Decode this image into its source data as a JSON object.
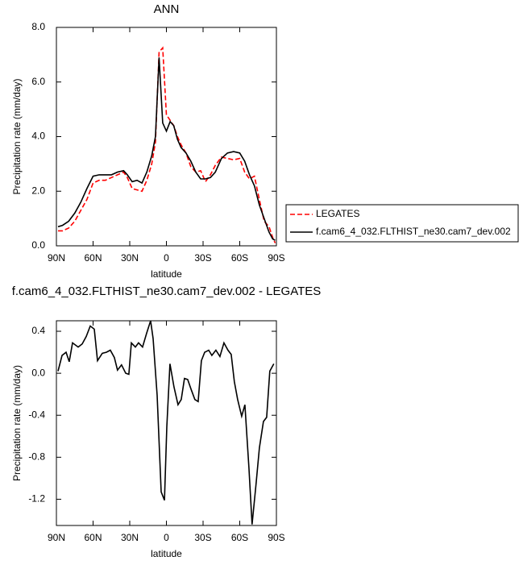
{
  "chart_data": [
    {
      "type": "line",
      "title": "ANN",
      "x_label": "latitude",
      "y_label": "Precipitation rate (mm/day)",
      "x": [
        88.7,
        85,
        80,
        75,
        70,
        65,
        60,
        55,
        50,
        45,
        40,
        35,
        32,
        28,
        24,
        20,
        16,
        12,
        9,
        6,
        3,
        0,
        -3,
        -6,
        -9,
        -12,
        -16,
        -20,
        -24,
        -28,
        -32,
        -36,
        -40,
        -45,
        -50,
        -55,
        -60,
        -64,
        -68,
        -72,
        -76,
        -80,
        -84,
        -87,
        -89
      ],
      "series": [
        {
          "name": "LEGATES",
          "color": "#ff0000",
          "style": "dashed",
          "values": [
            0.55,
            0.55,
            0.65,
            0.9,
            1.3,
            1.7,
            2.3,
            2.4,
            2.4,
            2.5,
            2.6,
            2.7,
            2.5,
            2.1,
            2.05,
            2.0,
            2.4,
            3.0,
            3.8,
            7.1,
            7.25,
            4.8,
            4.6,
            4.4,
            4.0,
            3.7,
            3.4,
            2.9,
            2.7,
            2.75,
            2.35,
            2.6,
            2.95,
            3.25,
            3.2,
            3.15,
            3.2,
            2.7,
            2.45,
            2.55,
            1.7,
            0.9,
            0.7,
            0.3,
            0.1
          ]
        },
        {
          "name": "f.cam6_4_032.FLTHIST_ne30.cam7_dev.002",
          "color": "#000000",
          "style": "solid",
          "values": [
            0.7,
            0.75,
            0.9,
            1.2,
            1.6,
            2.1,
            2.55,
            2.6,
            2.6,
            2.6,
            2.7,
            2.75,
            2.6,
            2.35,
            2.4,
            2.3,
            2.7,
            3.3,
            4.0,
            6.9,
            4.5,
            4.2,
            4.55,
            4.4,
            3.9,
            3.6,
            3.4,
            3.1,
            2.7,
            2.45,
            2.45,
            2.5,
            2.7,
            3.2,
            3.4,
            3.45,
            3.4,
            3.1,
            2.6,
            2.2,
            1.5,
            1.0,
            0.5,
            0.25,
            0.2
          ]
        }
      ],
      "xlim": [
        90,
        -90
      ],
      "xticks": [
        {
          "value": 90,
          "label": "90N"
        },
        {
          "value": 60,
          "label": "60N"
        },
        {
          "value": 30,
          "label": "30N"
        },
        0,
        {
          "value": -30,
          "label": "30S"
        },
        {
          "value": -60,
          "label": "60S"
        },
        {
          "value": -90,
          "label": "90S"
        }
      ],
      "ylim": [
        0,
        8
      ],
      "yticks": [
        {
          "value": 0,
          "label": "0.0"
        },
        {
          "value": 2,
          "label": "2.0"
        },
        {
          "value": 4,
          "label": "4.0"
        },
        {
          "value": 6,
          "label": "6.0"
        },
        {
          "value": 8,
          "label": "8.0"
        }
      ],
      "legend": "outside right"
    },
    {
      "type": "line",
      "title": "f.cam6_4_032.FLTHIST_ne30.cam7_dev.002 - LEGATES",
      "x_label": "latitude",
      "y_label": "Precipitation rate (mm/day)",
      "x": [
        88.7,
        85.4,
        82.1,
        79.5,
        76.8,
        72.2,
        68.9,
        65.6,
        62.3,
        59.0,
        56.4,
        52.5,
        49.2,
        45.9,
        42.6,
        40.0,
        36.7,
        33.3,
        30.7,
        28.7,
        25.4,
        22.8,
        19.5,
        16.2,
        12.9,
        10.9,
        7.6,
        4.3,
        1.6,
        -0.3,
        -2.9,
        -6.2,
        -9.5,
        -12.1,
        -14.8,
        -17.4,
        -20.1,
        -23.3,
        -26.0,
        -28.6,
        -31.3,
        -34.6,
        -37.2,
        -40.5,
        -43.8,
        -47.1,
        -50.4,
        -53.0,
        -55.6,
        -58.3,
        -61.6,
        -64.2,
        -67.5,
        -70.1,
        -73.4,
        -76.1,
        -79.4,
        -82.0,
        -84.6,
        -87.9
      ],
      "series": [
        {
          "color": "#000000",
          "style": "solid",
          "values": [
            0.02,
            0.17,
            0.2,
            0.11,
            0.29,
            0.25,
            0.28,
            0.35,
            0.45,
            0.42,
            0.12,
            0.19,
            0.2,
            0.22,
            0.15,
            0.03,
            0.08,
            0,
            -0.01,
            0.29,
            0.25,
            0.29,
            0.25,
            0.38,
            0.5,
            0.33,
            -0.21,
            -1.13,
            -1.21,
            -0.51,
            0.09,
            -0.13,
            -0.3,
            -0.25,
            -0.05,
            -0.06,
            -0.15,
            -0.25,
            -0.27,
            0.12,
            0.2,
            0.22,
            0.17,
            0.22,
            0.16,
            0.29,
            0.22,
            0.18,
            -0.08,
            -0.25,
            -0.41,
            -0.3,
            -0.9,
            -1.44,
            -1.05,
            -0.71,
            -0.46,
            -0.42,
            0.02,
            0.09
          ]
        }
      ],
      "xlim": [
        90,
        -90
      ],
      "xticks": [
        {
          "value": 90,
          "label": "90N"
        },
        {
          "value": 60,
          "label": "60N"
        },
        {
          "value": 30,
          "label": "30N"
        },
        0,
        {
          "value": -30,
          "label": "30S"
        },
        {
          "value": -60,
          "label": "60S"
        },
        {
          "value": -90,
          "label": "90S"
        }
      ],
      "ylim": [
        -1.45,
        0.5
      ],
      "yticks": [
        -1.2,
        -0.8,
        -0.4,
        {
          "value": 0,
          "label": "0.0"
        },
        0.4
      ]
    }
  ]
}
